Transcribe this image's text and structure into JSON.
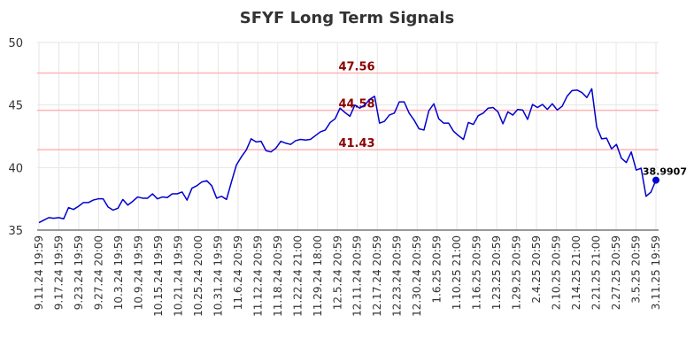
{
  "chart_data": {
    "type": "line",
    "title": "SFYF Long Term Signals",
    "xlabel": "",
    "ylabel": "",
    "ylim": [
      35,
      50
    ],
    "yticks": [
      35,
      40,
      45,
      50
    ],
    "xtick_labels": [
      "9.11.24 19:59",
      "9.17.24 19:59",
      "9.23.24 19:59",
      "9.27.24 20:00",
      "10.3.24 19:59",
      "10.9.24 19:59",
      "10.15.24 19:59",
      "10.21.24 19:59",
      "10.25.24 20:00",
      "10.31.24 19:59",
      "11.6.24 20:59",
      "11.12.24 20:59",
      "11.18.24 20:59",
      "11.22.24 21:00",
      "11.29.24 18:00",
      "12.5.24 20:59",
      "12.11.24 20:59",
      "12.17.24 20:59",
      "12.23.24 20:59",
      "12.30.24 20:59",
      "1.6.25 20:59",
      "1.10.25 21:00",
      "1.16.25 20:59",
      "1.23.25 20:59",
      "1.29.25 20:59",
      "2.4.25 20:59",
      "2.10.25 20:59",
      "2.14.25 21:00",
      "2.21.25 21:00",
      "2.27.25 20:59",
      "3.5.25 20:59",
      "3.11.25 19:59"
    ],
    "grid": true,
    "levels": [
      {
        "value": 47.56,
        "label": "47.56",
        "color": "#ffb3b3"
      },
      {
        "value": 44.58,
        "label": "44.58",
        "color": "#ffb3b3"
      },
      {
        "value": 41.43,
        "label": "41.43",
        "color": "#ffb3b3"
      }
    ],
    "last_point_label": "38.9907",
    "line_color": "#0000cc",
    "series": [
      {
        "values": [
          35.6,
          35.8,
          36.0,
          35.95,
          36.0,
          35.9,
          36.8,
          36.65,
          36.9,
          37.2,
          37.2,
          37.4,
          37.5,
          37.5,
          36.85,
          36.6,
          36.75,
          37.45,
          37.0,
          37.3,
          37.65,
          37.55,
          37.55,
          37.9,
          37.5,
          37.65,
          37.6,
          37.9,
          37.9,
          38.05,
          37.4,
          38.35,
          38.55,
          38.85,
          38.95,
          38.55,
          37.55,
          37.7,
          37.45,
          38.85,
          40.2,
          40.85,
          41.4,
          42.3,
          42.05,
          42.1,
          41.35,
          41.25,
          41.55,
          42.1,
          41.95,
          41.85,
          42.15,
          42.25,
          42.2,
          42.25,
          42.55,
          42.85,
          43.0,
          43.6,
          43.9,
          44.75,
          44.4,
          44.1,
          45.0,
          44.75,
          45.0,
          45.45,
          45.7,
          43.55,
          43.7,
          44.2,
          44.35,
          45.25,
          45.25,
          44.35,
          43.8,
          43.1,
          43.0,
          44.55,
          45.1,
          43.9,
          43.55,
          43.55,
          42.9,
          42.55,
          42.25,
          43.6,
          43.45,
          44.15,
          44.35,
          44.75,
          44.8,
          44.45,
          43.5,
          44.45,
          44.2,
          44.65,
          44.6,
          43.85,
          45.05,
          44.8,
          45.05,
          44.65,
          45.1,
          44.6,
          44.9,
          45.7,
          46.15,
          46.2,
          46.0,
          45.6,
          46.3,
          43.25,
          42.3,
          42.35,
          41.5,
          41.85,
          40.75,
          40.4,
          41.25,
          39.8,
          39.95,
          37.7,
          38.05,
          38.99
        ]
      }
    ]
  }
}
